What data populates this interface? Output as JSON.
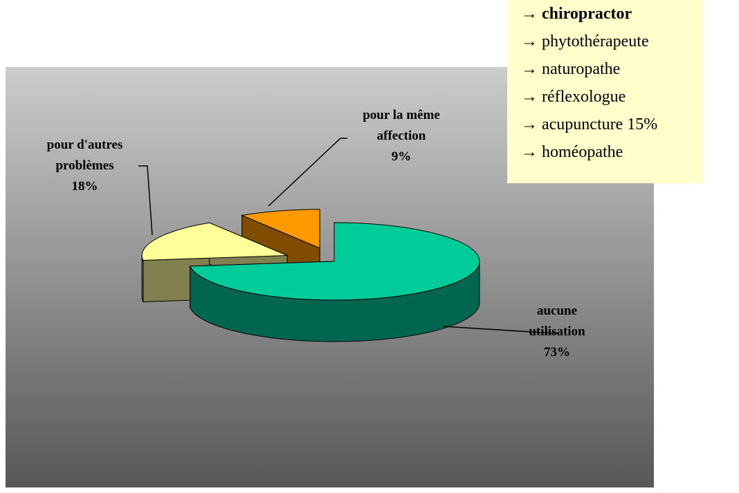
{
  "chart_data": {
    "type": "pie3d",
    "categories": [
      "aucune utilisation",
      "pour d'autres problèmes",
      "pour la même affection"
    ],
    "values": [
      73,
      18,
      9
    ],
    "value_labels": [
      "73%",
      "18%",
      "9%"
    ],
    "colors": [
      "#00cc99",
      "#ffff99",
      "#ff9900"
    ],
    "side_colors": [
      "#006650",
      "#808050",
      "#804c00"
    ]
  },
  "notes": [
    "→ chiropractor",
    "→ phytothérapeute",
    "→ naturopathe",
    "→ réflexologue",
    "→ acupuncture 15%",
    "→ homéopathe"
  ]
}
